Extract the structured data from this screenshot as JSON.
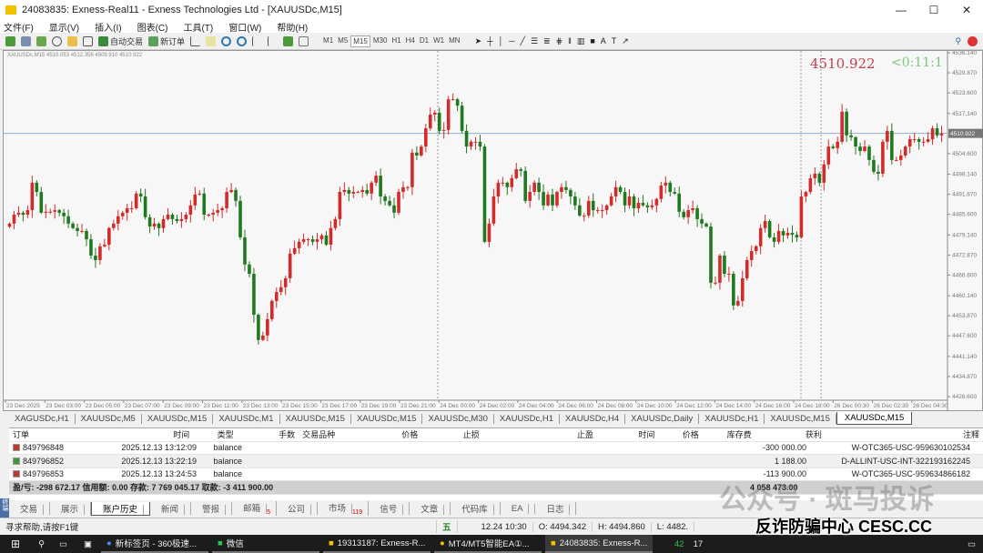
{
  "window": {
    "title": "24083835: Exness-Real11 - Exness Technologies Ltd - [XAUUSDc,M15]",
    "minimize": "—",
    "maximize": "☐",
    "close": "✕"
  },
  "menu": [
    "文件(F)",
    "显示(V)",
    "插入(I)",
    "图表(C)",
    "工具(T)",
    "窗口(W)",
    "帮助(H)"
  ],
  "toolbar": {
    "auto_trade": "自动交易",
    "new_order": "新订单",
    "timeframes": [
      "M1",
      "M5",
      "M15",
      "M30",
      "H1",
      "H4",
      "D1",
      "W1",
      "MN"
    ],
    "active_timeframe": "M15"
  },
  "chart": {
    "info": "XAUUSDc,M15  4510.053 4512.356 4509.910 4510.922",
    "big_price": "4510.922",
    "timer": "<0:11:1",
    "current_price_label": "4510.922"
  },
  "chart_data": {
    "type": "candlestick",
    "symbol": "XAUUSDc",
    "timeframe": "M15",
    "ylim": [
      4428.6,
      4536.14
    ],
    "y_ticks": [
      "4536.140",
      "4529.870",
      "4523.600",
      "4517.140",
      "4504.600",
      "4498.140",
      "4491.870",
      "4485.600",
      "4479.140",
      "4472.870",
      "4466.600",
      "4460.140",
      "4453.870",
      "4447.600",
      "4441.140",
      "4434.870",
      "4428.600"
    ],
    "y_tick_values": [
      4536.14,
      4529.87,
      4523.6,
      4517.14,
      4504.6,
      4498.14,
      4491.87,
      4485.6,
      4479.14,
      4472.87,
      4466.6,
      4460.14,
      4453.87,
      4447.6,
      4441.14,
      4434.87,
      4428.6
    ],
    "current_price": 4510.922,
    "x_ticks": [
      "23 Dec 2025",
      "23 Dec 03:00",
      "23 Dec 05:00",
      "23 Dec 07:00",
      "23 Dec 09:00",
      "23 Dec 11:00",
      "23 Dec 13:00",
      "23 Dec 15:00",
      "23 Dec 17:00",
      "23 Dec 19:00",
      "23 Dec 21:00",
      "24 Dec 00:00",
      "24 Dec 02:00",
      "24 Dec 04:00",
      "24 Dec 06:00",
      "24 Dec 08:00",
      "24 Dec 10:00",
      "24 Dec 12:00",
      "24 Dec 14:00",
      "24 Dec 16:00",
      "24 Dec 18:00",
      "26 Dec 00:30",
      "26 Dec 02:30",
      "26 Dec 04:30"
    ],
    "up_color": "#d42a2a",
    "down_color": "#1e7a1e",
    "closes": [
      4482.7,
      4485.5,
      4486.1,
      4485.5,
      4486.9,
      4495.5,
      4492.6,
      4486.1,
      4486.4,
      4486.4,
      4486.9,
      4486.1,
      4485.0,
      4482.7,
      4481.3,
      4480.4,
      4480.4,
      4477.8,
      4472.7,
      4471.3,
      4475.6,
      4476.1,
      4481.3,
      4482.7,
      4485.0,
      4486.1,
      4487.5,
      4487.5,
      4492.1,
      4491.2,
      4484.7,
      4481.8,
      4482.7,
      4481.3,
      4484.1,
      4485.5,
      4484.1,
      4483.5,
      4484.1,
      4485.5,
      4488.4,
      4491.8,
      4492.1,
      4485.5,
      4485.5,
      4486.1,
      4486.9,
      4487.5,
      4492.6,
      4493.2,
      4489.8,
      4478.4,
      4469.9,
      4467.0,
      4454.2,
      4446.3,
      4447.7,
      4452.8,
      4458.5,
      4461.3,
      4462.8,
      4465.6,
      4473.3,
      4475.0,
      4477.0,
      4477.8,
      4477.8,
      4477.0,
      4477.8,
      4479.0,
      4476.1,
      4481.3,
      4484.1,
      4492.6,
      4493.2,
      4492.1,
      4492.6,
      4492.6,
      4493.2,
      4492.1,
      4495.5,
      4497.7,
      4491.2,
      4489.8,
      4488.4,
      4486.1,
      4492.6,
      4494.1,
      4494.1,
      4504.9,
      4504.0,
      4506.8,
      4512.5,
      4516.8,
      4517.4,
      4511.7,
      4512.0,
      4521.6,
      4521.6,
      4519.6,
      4511.7,
      4506.8,
      4508.3,
      4508.3,
      4506.8,
      4477.0,
      4482.7,
      4491.2,
      4495.5,
      4495.5,
      4494.1,
      4496.9,
      4499.7,
      4499.2,
      4489.8,
      4492.6,
      4495.5,
      4492.6,
      4488.4,
      4491.8,
      4488.4,
      4492.6,
      4494.1,
      4493.2,
      4491.2,
      4488.4,
      4485.2,
      4485.2,
      4489.8,
      4486.9,
      4486.9,
      4486.9,
      4488.4,
      4491.2,
      4494.1,
      4492.6,
      4488.4,
      4491.2,
      4487.5,
      4489.2,
      4488.4,
      4487.8,
      4488.4,
      4490.4,
      4494.6,
      4495.5,
      4492.6,
      4492.1,
      4486.4,
      4484.7,
      4486.9,
      4487.5,
      4484.1,
      4482.7,
      4481.8,
      4464.2,
      4464.2,
      4472.7,
      4467.0,
      4467.0,
      4457.1,
      4458.5,
      4465.6,
      4471.3,
      4474.1,
      4475.6,
      4481.3,
      4483.5,
      4478.4,
      4477.0,
      4480.4,
      4479.0,
      4479.8,
      4479.2,
      4478.4,
      4491.2,
      4492.6,
      4496.9,
      4498.3,
      4495.5,
      4501.2,
      4506.8,
      4506.3,
      4508.3,
      4517.7,
      4510.3,
      4509.7,
      4506.8,
      4505.4,
      4506.8,
      4502.6,
      4498.9,
      4498.3,
      4508.3,
      4511.7,
      4502.6,
      4502.6,
      4504.0,
      4506.8,
      4509.1,
      4509.1,
      4508.3,
      4508.3,
      4509.1,
      4512.5,
      4510.3,
      4510.9
    ]
  },
  "chart_tabs": [
    "XAGUSDc,H1",
    "XAUUSDc,M5",
    "XAUUSDc,M15",
    "XAUUSDc,M1",
    "XAUUSDc,M15",
    "XAUUSDc,M15",
    "XAUUSDc,M30",
    "XAUUSDc,H1",
    "XAUUSDc,H4",
    "XAUUSDc,Daily",
    "XAUUSDc,H1",
    "XAUUSDc,M15",
    "XAUUSDc,M15"
  ],
  "terminal": {
    "headers": [
      "订单",
      "时间",
      "类型",
      "手数",
      "交易品种",
      "价格",
      "止损",
      "止盈",
      "时间",
      "价格",
      "库存费",
      "获利",
      "注释"
    ],
    "rows": [
      {
        "order": "849796848",
        "time": "2025.12.13 13:12:09",
        "type": "balance",
        "profit": "-300 000.00",
        "comment": "W-OTC365-USC-959630102534",
        "icon": "withdraw"
      },
      {
        "order": "849796852",
        "time": "2025.12.13 13:22:19",
        "type": "balance",
        "profit": "1 188.00",
        "comment": "D-ALLINT-USC-INT-322193162245",
        "icon": "deposit"
      },
      {
        "order": "849796853",
        "time": "2025.12.13 13:24:53",
        "type": "balance",
        "profit": "-113 900.00",
        "comment": "W-OTC365-USC-959634866182",
        "icon": "withdraw"
      }
    ],
    "summary": "盈/亏: -298 672.17  信用额: 0.00  存款: 7 769 045.17  取款: -3 411 900.00",
    "summary_total": "4 058 473.00",
    "tabs": [
      {
        "label": "交易"
      },
      {
        "label": "展示"
      },
      {
        "label": "账户历史",
        "active": true
      },
      {
        "label": "新闻"
      },
      {
        "label": "警报"
      },
      {
        "label": "邮箱",
        "badge": "5"
      },
      {
        "label": "公司"
      },
      {
        "label": "市场",
        "badge": "119"
      },
      {
        "label": "信号"
      },
      {
        "label": "文章"
      },
      {
        "label": "代码库"
      },
      {
        "label": "EA"
      },
      {
        "label": "日志"
      }
    ],
    "side_label": "终端"
  },
  "status": {
    "help": "寻求帮助,请按F1键",
    "ime": "五",
    "datetime": "12.24 10:30",
    "open": "O: 4494.342",
    "high": "H: 4494.860",
    "low": "L: 4482."
  },
  "taskbar": {
    "items": [
      "新标签页 - 360极速...",
      "微信",
      "19313187: Exness-R...",
      "MT4/MT5智能EA①...",
      "24083835: Exness-R..."
    ],
    "tray": [
      "42",
      "17"
    ]
  },
  "watermarks": {
    "wechat": "公众号 · 斑马投诉",
    "cesc": "反诈防骗中心 CESC.CC"
  }
}
